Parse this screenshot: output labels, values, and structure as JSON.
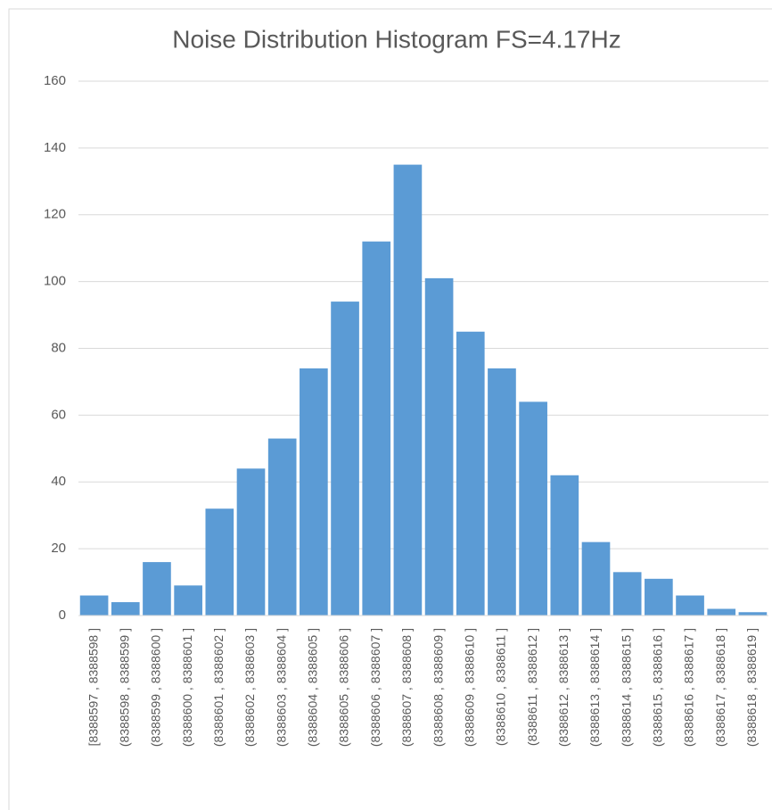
{
  "chart_data": {
    "type": "bar",
    "title": "Noise Distribution Histogram FS=4.17Hz",
    "categories": [
      "[8388597 , 8388598 ]",
      "(8388598 , 8388599 ]",
      "(8388599 , 8388600 ]",
      "(8388600 , 8388601 ]",
      "(8388601 , 8388602 ]",
      "(8388602 , 8388603 ]",
      "(8388603 , 8388604 ]",
      "(8388604 , 8388605 ]",
      "(8388605 , 8388606 ]",
      "(8388606 , 8388607 ]",
      "(8388607 , 8388608 ]",
      "(8388608 , 8388609 ]",
      "(8388609 , 8388610 ]",
      "(8388610 , 8388611 ]",
      "(8388611 , 8388612 ]",
      "(8388612 , 8388613 ]",
      "(8388613 , 8388614 ]",
      "(8388614 , 8388615 ]",
      "(8388615 , 8388616 ]",
      "(8388616 , 8388617 ]",
      "(8388617 , 8388618 ]",
      "(8388618 , 8388619 ]"
    ],
    "values": [
      6,
      4,
      16,
      9,
      32,
      44,
      53,
      74,
      94,
      112,
      135,
      101,
      85,
      74,
      64,
      42,
      22,
      13,
      11,
      6,
      2,
      1
    ],
    "color": "#5b9bd5",
    "ylim": [
      0,
      160
    ],
    "yticks": [
      0,
      20,
      40,
      60,
      80,
      100,
      120,
      140,
      160
    ],
    "grid": true
  }
}
